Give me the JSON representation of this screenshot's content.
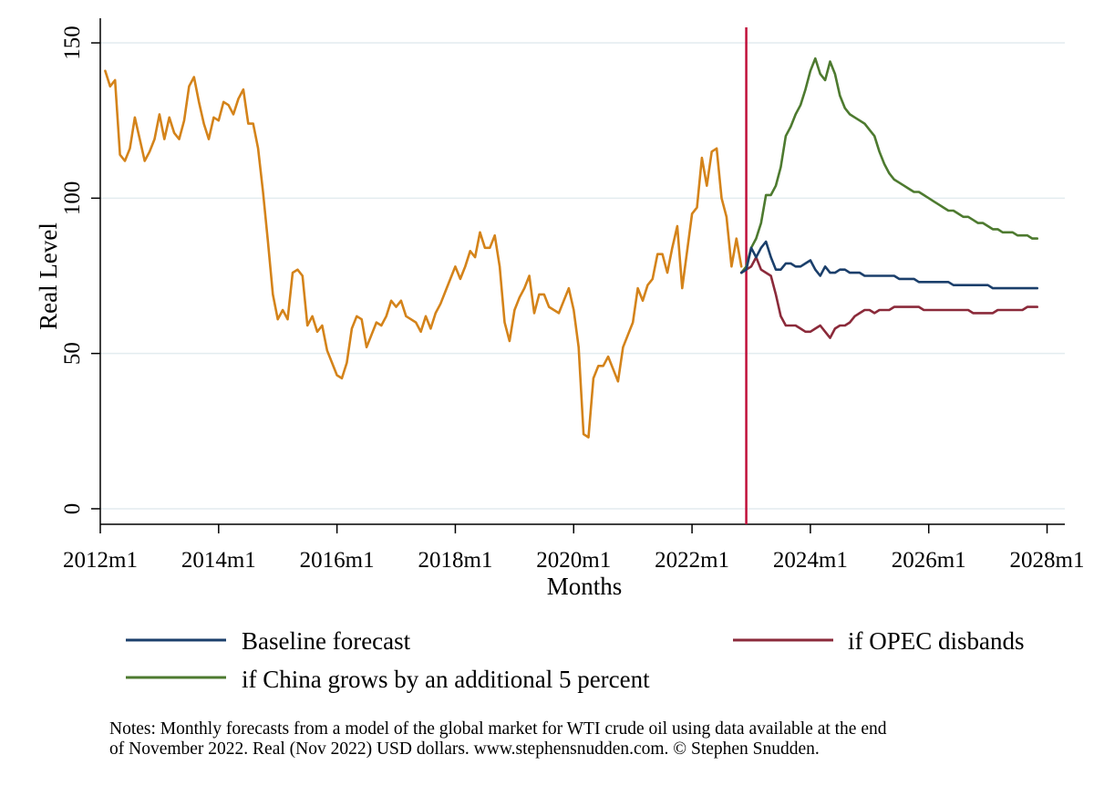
{
  "colors": {
    "historical": "#d4831a",
    "baseline": "#1b3f6b",
    "opec": "#8b2a3a",
    "china": "#4d7a2f",
    "forecast_line": "#c0103a",
    "grid": "#e3ecef",
    "axis": "#000000"
  },
  "chart_data": {
    "type": "line",
    "xlabel": "Months",
    "ylabel": "Real Level",
    "xlim": [
      2012.0,
      2028.3
    ],
    "ylim": [
      -5,
      155
    ],
    "x_ticks": [
      2012,
      2014,
      2016,
      2018,
      2020,
      2022,
      2024,
      2026,
      2028
    ],
    "x_tick_labels": [
      "2012m1",
      "2014m1",
      "2016m1",
      "2018m1",
      "2020m1",
      "2022m1",
      "2024m1",
      "2026m1",
      "2028m1"
    ],
    "y_ticks": [
      0,
      50,
      100,
      150
    ],
    "y_tick_labels": [
      "0",
      "50",
      "100",
      "150"
    ],
    "grid": true,
    "forecast_start": "2022m12",
    "legend_position": "bottom",
    "series": [
      {
        "key": "historical",
        "start": "2012m2",
        "values": [
          141,
          136,
          138,
          114,
          112,
          116,
          126,
          119,
          112,
          115,
          119,
          127,
          119,
          126,
          121,
          119,
          125,
          136,
          139,
          131,
          124,
          119,
          126,
          125,
          131,
          130,
          127,
          132,
          135,
          124,
          124,
          116,
          102,
          86,
          69,
          61,
          64,
          61,
          76,
          77,
          75,
          59,
          62,
          57,
          59,
          51,
          47,
          43,
          42,
          47,
          58,
          62,
          61,
          52,
          56,
          60,
          59,
          62,
          67,
          65,
          67,
          62,
          61,
          60,
          57,
          62,
          58,
          63,
          66,
          70,
          74,
          78,
          74,
          78,
          83,
          81,
          89,
          84,
          84,
          88,
          78,
          60,
          54,
          64,
          68,
          71,
          75,
          63,
          69,
          69,
          65,
          64,
          63,
          67,
          71,
          64,
          52,
          24,
          23,
          42,
          46,
          46,
          49,
          45,
          41,
          52,
          56,
          60,
          71,
          67,
          72,
          74,
          82,
          82,
          76,
          84,
          91,
          71,
          83,
          95,
          97,
          113,
          104,
          115,
          116,
          100,
          94,
          78,
          87,
          78
        ]
      },
      {
        "key": "baseline",
        "name": "Baseline forecast",
        "start": "2022m11",
        "values": [
          76,
          77,
          84,
          81,
          84,
          86,
          81,
          77,
          77,
          79,
          79,
          78,
          78,
          79,
          80,
          77,
          75,
          78,
          76,
          76,
          77,
          77,
          76,
          76,
          76,
          75,
          75,
          75,
          75,
          75,
          75,
          75,
          74,
          74,
          74,
          74,
          73,
          73,
          73,
          73,
          73,
          73,
          73,
          72,
          72,
          72,
          72,
          72,
          72,
          72,
          72,
          71,
          71,
          71,
          71,
          71,
          71,
          71,
          71,
          71,
          71
        ]
      },
      {
        "key": "opec",
        "name": "if OPEC disbands",
        "start": "2022m11",
        "values": [
          76,
          77,
          78,
          81,
          77,
          76,
          75,
          69,
          62,
          59,
          59,
          59,
          58,
          57,
          57,
          58,
          59,
          57,
          55,
          58,
          59,
          59,
          60,
          62,
          63,
          64,
          64,
          63,
          64,
          64,
          64,
          65,
          65,
          65,
          65,
          65,
          65,
          64,
          64,
          64,
          64,
          64,
          64,
          64,
          64,
          64,
          64,
          63,
          63,
          63,
          63,
          63,
          64,
          64,
          64,
          64,
          64,
          64,
          65,
          65,
          65
        ]
      },
      {
        "key": "china",
        "name": "if China grows by an additional 5 percent",
        "start": "2022m11",
        "values": [
          76,
          78,
          84,
          87,
          92,
          101,
          101,
          104,
          110,
          120,
          123,
          127,
          130,
          135,
          141,
          145,
          140,
          138,
          144,
          140,
          133,
          129,
          127,
          126,
          125,
          124,
          122,
          120,
          115,
          111,
          108,
          106,
          105,
          104,
          103,
          102,
          102,
          101,
          100,
          99,
          98,
          97,
          96,
          96,
          95,
          94,
          94,
          93,
          92,
          92,
          91,
          90,
          90,
          89,
          89,
          89,
          88,
          88,
          88,
          87,
          87
        ]
      }
    ]
  },
  "notes": {
    "line1": "Notes: Monthly forecasts from a model of the global market for WTI crude oil using data available at the end",
    "line2": "of November 2022. Real (Nov 2022) USD dollars. www.stephensnudden.com. © Stephen Snudden."
  }
}
